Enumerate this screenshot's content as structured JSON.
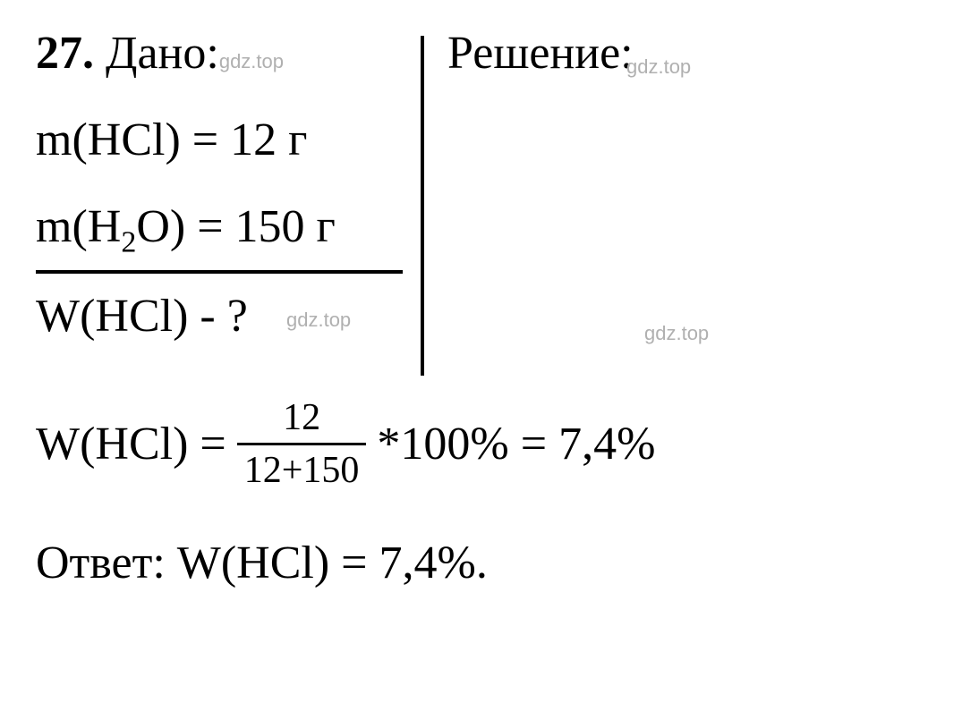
{
  "problem": {
    "number": "27.",
    "given_label": "Дано:",
    "solution_label": "Решение:",
    "watermark": "gdz.top",
    "given_lines": {
      "line1": "m(HCl) = 12 г",
      "line2_prefix": "m(H",
      "line2_sub": "2",
      "line2_suffix": "O) = 150 г",
      "line3": "W(HCl) - ?"
    },
    "formula": {
      "lhs": "W(HCl) = ",
      "numerator": "12",
      "denominator": "12+150",
      "rhs": " *100% = 7,4%"
    },
    "answer": "Ответ: W(HCl) = 7,4%."
  },
  "colors": {
    "text": "#000000",
    "background": "#ffffff",
    "watermark": "#b0b0b0"
  },
  "typography": {
    "main_fontsize": 52,
    "fraction_fontsize": 42,
    "watermark_fontsize": 22,
    "subscript_fontsize": 34,
    "font_family": "Times New Roman"
  }
}
